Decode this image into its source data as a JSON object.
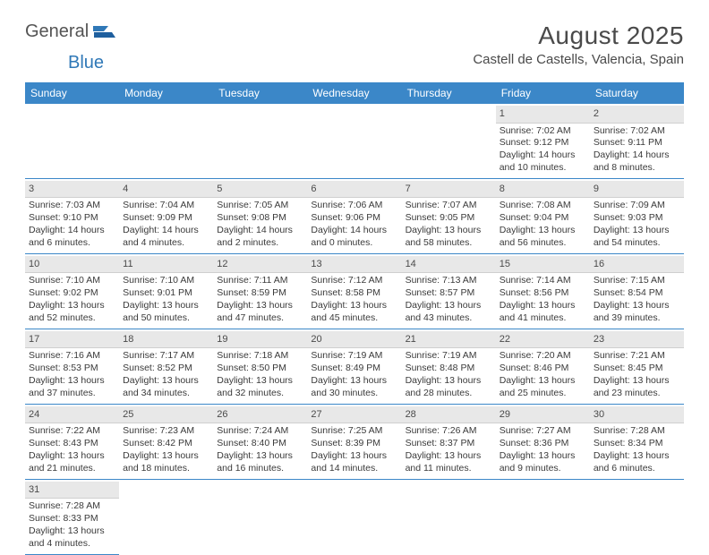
{
  "logo": {
    "general": "General",
    "blue": "Blue"
  },
  "header": {
    "month": "August 2025",
    "location": "Castell de Castells, Valencia, Spain"
  },
  "dow": [
    "Sunday",
    "Monday",
    "Tuesday",
    "Wednesday",
    "Thursday",
    "Friday",
    "Saturday"
  ],
  "colors": {
    "header_bar": "#3b87c8",
    "row_border": "#3b87c8",
    "num_bg": "#e8e8e8"
  },
  "weeks": [
    [
      null,
      null,
      null,
      null,
      null,
      {
        "n": "1",
        "sr": "7:02 AM",
        "ss": "9:12 PM",
        "dl": "14 hours and 10 minutes."
      },
      {
        "n": "2",
        "sr": "7:02 AM",
        "ss": "9:11 PM",
        "dl": "14 hours and 8 minutes."
      }
    ],
    [
      {
        "n": "3",
        "sr": "7:03 AM",
        "ss": "9:10 PM",
        "dl": "14 hours and 6 minutes."
      },
      {
        "n": "4",
        "sr": "7:04 AM",
        "ss": "9:09 PM",
        "dl": "14 hours and 4 minutes."
      },
      {
        "n": "5",
        "sr": "7:05 AM",
        "ss": "9:08 PM",
        "dl": "14 hours and 2 minutes."
      },
      {
        "n": "6",
        "sr": "7:06 AM",
        "ss": "9:06 PM",
        "dl": "14 hours and 0 minutes."
      },
      {
        "n": "7",
        "sr": "7:07 AM",
        "ss": "9:05 PM",
        "dl": "13 hours and 58 minutes."
      },
      {
        "n": "8",
        "sr": "7:08 AM",
        "ss": "9:04 PM",
        "dl": "13 hours and 56 minutes."
      },
      {
        "n": "9",
        "sr": "7:09 AM",
        "ss": "9:03 PM",
        "dl": "13 hours and 54 minutes."
      }
    ],
    [
      {
        "n": "10",
        "sr": "7:10 AM",
        "ss": "9:02 PM",
        "dl": "13 hours and 52 minutes."
      },
      {
        "n": "11",
        "sr": "7:10 AM",
        "ss": "9:01 PM",
        "dl": "13 hours and 50 minutes."
      },
      {
        "n": "12",
        "sr": "7:11 AM",
        "ss": "8:59 PM",
        "dl": "13 hours and 47 minutes."
      },
      {
        "n": "13",
        "sr": "7:12 AM",
        "ss": "8:58 PM",
        "dl": "13 hours and 45 minutes."
      },
      {
        "n": "14",
        "sr": "7:13 AM",
        "ss": "8:57 PM",
        "dl": "13 hours and 43 minutes."
      },
      {
        "n": "15",
        "sr": "7:14 AM",
        "ss": "8:56 PM",
        "dl": "13 hours and 41 minutes."
      },
      {
        "n": "16",
        "sr": "7:15 AM",
        "ss": "8:54 PM",
        "dl": "13 hours and 39 minutes."
      }
    ],
    [
      {
        "n": "17",
        "sr": "7:16 AM",
        "ss": "8:53 PM",
        "dl": "13 hours and 37 minutes."
      },
      {
        "n": "18",
        "sr": "7:17 AM",
        "ss": "8:52 PM",
        "dl": "13 hours and 34 minutes."
      },
      {
        "n": "19",
        "sr": "7:18 AM",
        "ss": "8:50 PM",
        "dl": "13 hours and 32 minutes."
      },
      {
        "n": "20",
        "sr": "7:19 AM",
        "ss": "8:49 PM",
        "dl": "13 hours and 30 minutes."
      },
      {
        "n": "21",
        "sr": "7:19 AM",
        "ss": "8:48 PM",
        "dl": "13 hours and 28 minutes."
      },
      {
        "n": "22",
        "sr": "7:20 AM",
        "ss": "8:46 PM",
        "dl": "13 hours and 25 minutes."
      },
      {
        "n": "23",
        "sr": "7:21 AM",
        "ss": "8:45 PM",
        "dl": "13 hours and 23 minutes."
      }
    ],
    [
      {
        "n": "24",
        "sr": "7:22 AM",
        "ss": "8:43 PM",
        "dl": "13 hours and 21 minutes."
      },
      {
        "n": "25",
        "sr": "7:23 AM",
        "ss": "8:42 PM",
        "dl": "13 hours and 18 minutes."
      },
      {
        "n": "26",
        "sr": "7:24 AM",
        "ss": "8:40 PM",
        "dl": "13 hours and 16 minutes."
      },
      {
        "n": "27",
        "sr": "7:25 AM",
        "ss": "8:39 PM",
        "dl": "13 hours and 14 minutes."
      },
      {
        "n": "28",
        "sr": "7:26 AM",
        "ss": "8:37 PM",
        "dl": "13 hours and 11 minutes."
      },
      {
        "n": "29",
        "sr": "7:27 AM",
        "ss": "8:36 PM",
        "dl": "13 hours and 9 minutes."
      },
      {
        "n": "30",
        "sr": "7:28 AM",
        "ss": "8:34 PM",
        "dl": "13 hours and 6 minutes."
      }
    ],
    [
      {
        "n": "31",
        "sr": "7:28 AM",
        "ss": "8:33 PM",
        "dl": "13 hours and 4 minutes."
      },
      null,
      null,
      null,
      null,
      null,
      null
    ]
  ],
  "labels": {
    "sunrise": "Sunrise: ",
    "sunset": "Sunset: ",
    "daylight": "Daylight: "
  }
}
